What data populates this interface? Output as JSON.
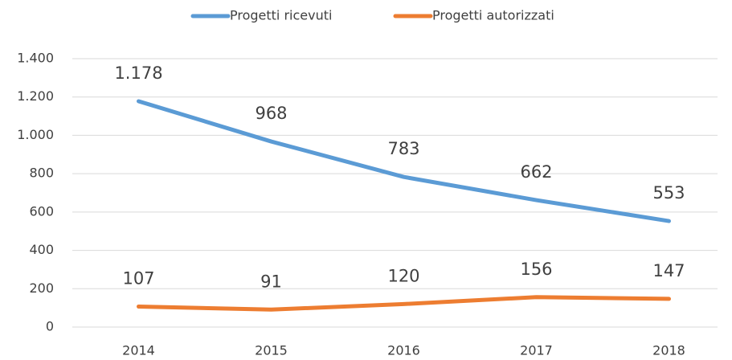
{
  "chart_data": {
    "type": "line",
    "categories": [
      "2014",
      "2015",
      "2016",
      "2017",
      "2018"
    ],
    "series": [
      {
        "name": "Progetti ricevuti",
        "color": "#5b9bd5",
        "values": [
          1178,
          968,
          783,
          662,
          553
        ],
        "value_labels": [
          "1.178",
          "968",
          "783",
          "662",
          "553"
        ]
      },
      {
        "name": "Progetti autorizzati",
        "color": "#ed7d31",
        "values": [
          107,
          91,
          120,
          156,
          147
        ]
      }
    ],
    "ylim": [
      0,
      1400
    ],
    "yticks": [
      0,
      200,
      400,
      600,
      800,
      {
        "value": 1000,
        "label": "1.000"
      },
      {
        "value": 1200,
        "label": "1.200"
      },
      {
        "value": 1400,
        "label": "1.400"
      }
    ],
    "grid": true,
    "legend": "top"
  }
}
